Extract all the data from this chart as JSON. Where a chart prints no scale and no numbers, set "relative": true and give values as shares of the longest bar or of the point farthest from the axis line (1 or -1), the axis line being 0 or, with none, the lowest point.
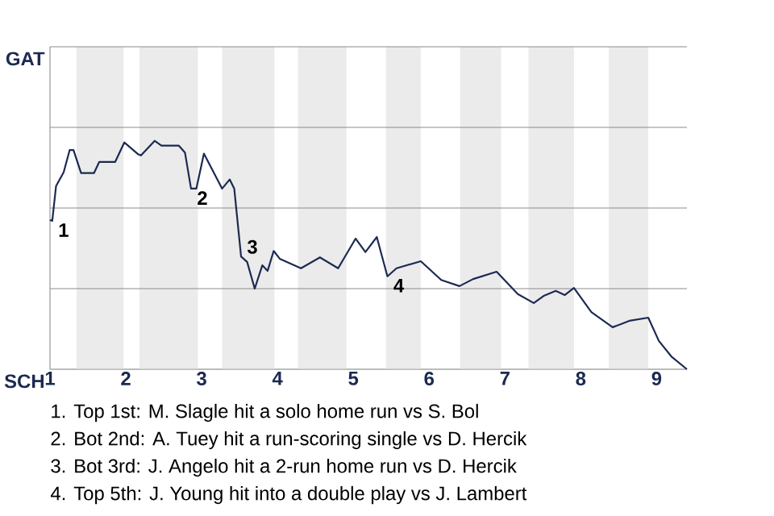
{
  "chart_data": {
    "type": "line",
    "relative": true,
    "x": [
      1,
      1.03,
      1.08,
      1.18,
      1.26,
      1.31,
      1.41,
      1.58,
      1.65,
      1.86,
      1.98,
      2.16,
      2.2,
      2.38,
      2.47,
      2.7,
      2.78,
      2.86,
      2.93,
      3.03,
      3.27,
      3.37,
      3.43,
      3.52,
      3.6,
      3.7,
      3.8,
      3.87,
      3.95,
      4.03,
      4.31,
      4.56,
      4.8,
      5.03,
      5.16,
      5.31,
      5.45,
      5.57,
      5.89,
      6.16,
      6.4,
      6.58,
      6.89,
      7.17,
      7.38,
      7.51,
      7.67,
      7.79,
      7.91,
      8.14,
      8.42,
      8.64,
      8.89,
      9.03,
      9.2,
      9.4
    ],
    "series": [
      {
        "color": "#1c2a52",
        "values": [
          0.654,
          0.65,
          0.802,
          0.862,
          0.96,
          0.96,
          0.859,
          0.859,
          0.908,
          0.908,
          0.993,
          0.942,
          0.936,
          1,
          0.979,
          0.979,
          0.949,
          0.791,
          0.791,
          0.944,
          0.791,
          0.831,
          0.791,
          0.494,
          0.47,
          0.353,
          0.455,
          0.431,
          0.518,
          0.484,
          0.442,
          0.49,
          0.442,
          0.572,
          0.513,
          0.579,
          0.407,
          0.442,
          0.473,
          0.391,
          0.364,
          0.395,
          0.427,
          0.329,
          0.29,
          0.321,
          0.343,
          0.325,
          0.356,
          0.25,
          0.184,
          0.212,
          0.226,
          0.124,
          0.054,
          0
        ]
      }
    ],
    "xlim": [
      1,
      9.4
    ],
    "xticks": [
      1,
      2,
      3,
      4,
      5,
      6,
      7,
      8,
      9
    ],
    "marker": "none",
    "line_style": "solid",
    "ref_lines": [
      {
        "axis": "y",
        "value": 0,
        "label": "SCH",
        "color": "#b4b4b4"
      },
      {
        "axis": "y",
        "value": 0.353,
        "color": "#8c8c8c"
      },
      {
        "axis": "y",
        "value": 0.706,
        "color": "#8c8c8c"
      },
      {
        "axis": "y",
        "value": 1.059,
        "color": "#8c8c8c"
      },
      {
        "axis": "y",
        "value": 1.412,
        "label": "GAT",
        "color": "#8c8c8c"
      }
    ],
    "bands": [
      {
        "axis": "x",
        "from": 1.35,
        "to": 1.97,
        "color": "#ebebeb"
      },
      {
        "axis": "x",
        "from": 2.18,
        "to": 2.95,
        "color": "#ebebeb"
      },
      {
        "axis": "x",
        "from": 3.27,
        "to": 3.96,
        "color": "#ebebeb"
      },
      {
        "axis": "x",
        "from": 4.27,
        "to": 4.91,
        "color": "#ebebeb"
      },
      {
        "axis": "x",
        "from": 5.43,
        "to": 5.89,
        "color": "#ebebeb"
      },
      {
        "axis": "x",
        "from": 6.41,
        "to": 6.95,
        "color": "#ebebeb"
      },
      {
        "axis": "x",
        "from": 7.31,
        "to": 7.91,
        "color": "#ebebeb"
      },
      {
        "axis": "x",
        "from": 8.37,
        "to": 8.89,
        "color": "#ebebeb"
      }
    ],
    "annotations": [
      {
        "text": "1",
        "x": 1.03,
        "y": 0.65
      },
      {
        "text": "2",
        "x": 2.86,
        "y": 0.791
      },
      {
        "text": "3",
        "x": 3.52,
        "y": 0.494
      },
      {
        "text": "4",
        "x": 5.45,
        "y": 0.407
      },
      "1. Top 1st: M. Slagle hit a solo home run vs S. Bol",
      "2. Bot 2nd: A. Tuey hit a run-scoring single vs D. Hercik",
      "3. Bot 3rd: J. Angelo hit a 2-run home run vs D. Hercik",
      "4. Top 5th: J. Young hit into a double play vs J. Lambert"
    ]
  }
}
